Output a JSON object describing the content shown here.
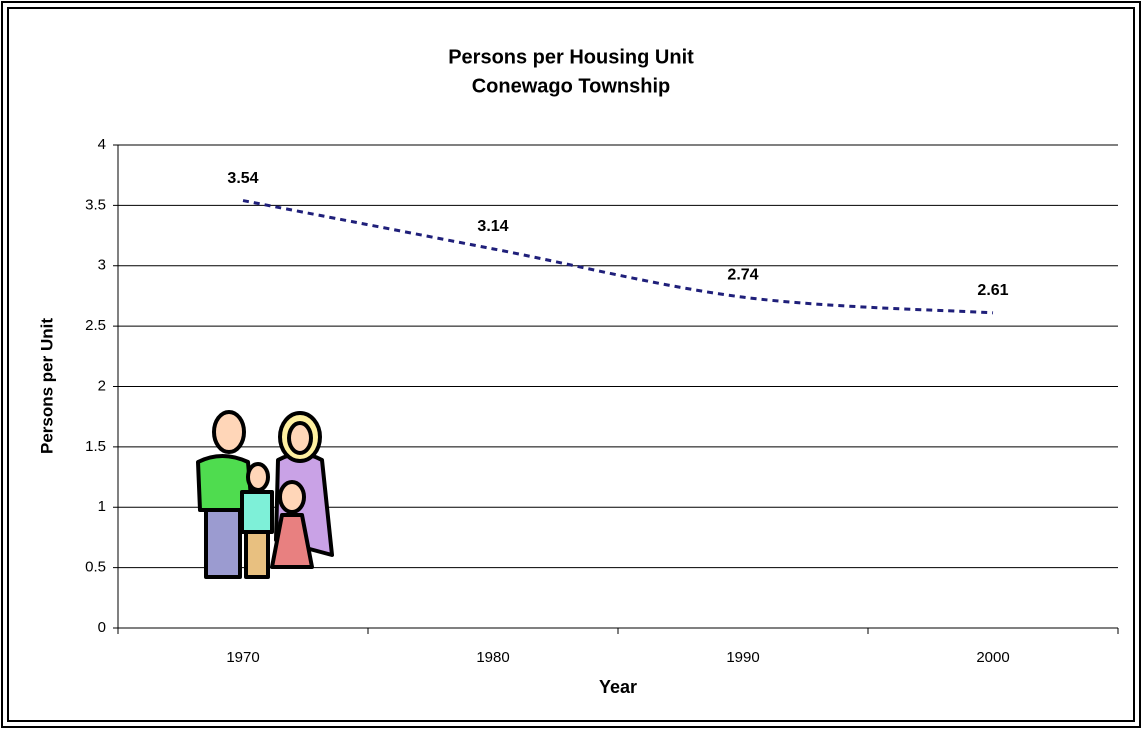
{
  "chart_data": {
    "type": "line",
    "title": "Persons per Housing Unit",
    "subtitle": "Conewago Township",
    "x_label": "Year",
    "y_label": "Persons per Unit",
    "categories": [
      "1970",
      "1980",
      "1990",
      "2000"
    ],
    "values": [
      3.54,
      3.14,
      2.74,
      2.61
    ],
    "color": "#1f1f7a",
    "line_style": "dotted",
    "smooth": true,
    "ylim": [
      0,
      4
    ],
    "yticks": [
      0,
      0.5,
      1,
      1.5,
      2,
      2.5,
      3,
      3.5,
      4
    ],
    "grid": true
  }
}
